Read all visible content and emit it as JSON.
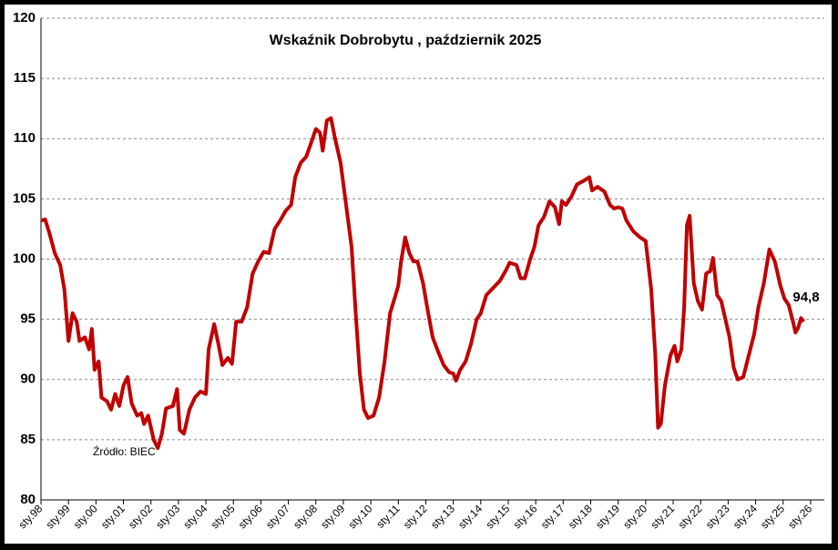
{
  "chart_data": {
    "type": "line",
    "title": "Wskaźnik Dobrobytu , październik 2025",
    "source": "Źródło: BIEC",
    "x": [
      1998.0,
      1998.15,
      1998.3,
      1998.5,
      1998.7,
      1998.85,
      1999.0,
      1999.15,
      1999.3,
      1999.4,
      1999.6,
      1999.75,
      1999.85,
      1999.95,
      2000.1,
      2000.2,
      2000.4,
      2000.55,
      2000.7,
      2000.85,
      2001.0,
      2001.15,
      2001.3,
      2001.5,
      2001.65,
      2001.75,
      2001.9,
      2002.1,
      2002.25,
      2002.4,
      2002.55,
      2002.8,
      2002.95,
      2003.05,
      2003.2,
      2003.4,
      2003.6,
      2003.8,
      2004.0,
      2004.1,
      2004.3,
      2004.45,
      2004.6,
      2004.8,
      2004.95,
      2005.1,
      2005.3,
      2005.5,
      2005.7,
      2005.9,
      2006.1,
      2006.3,
      2006.5,
      2006.7,
      2006.9,
      2007.1,
      2007.25,
      2007.45,
      2007.65,
      2007.85,
      2008.0,
      2008.15,
      2008.25,
      2008.4,
      2008.55,
      2008.7,
      2008.9,
      2009.1,
      2009.3,
      2009.45,
      2009.6,
      2009.75,
      2009.9,
      2010.1,
      2010.3,
      2010.5,
      2010.7,
      2010.9,
      2011.0,
      2011.1,
      2011.25,
      2011.4,
      2011.55,
      2011.7,
      2011.9,
      2012.05,
      2012.25,
      2012.45,
      2012.65,
      2012.85,
      2013.0,
      2013.1,
      2013.25,
      2013.45,
      2013.65,
      2013.85,
      2014.0,
      2014.2,
      2014.45,
      2014.7,
      2014.9,
      2015.05,
      2015.3,
      2015.45,
      2015.6,
      2015.8,
      2015.95,
      2016.1,
      2016.3,
      2016.5,
      2016.7,
      2016.85,
      2016.95,
      2017.1,
      2017.3,
      2017.5,
      2017.75,
      2017.95,
      2018.05,
      2018.25,
      2018.5,
      2018.7,
      2018.85,
      2019.0,
      2019.15,
      2019.3,
      2019.55,
      2019.8,
      2020.0,
      2020.2,
      2020.35,
      2020.45,
      2020.55,
      2020.7,
      2020.9,
      2021.05,
      2021.15,
      2021.3,
      2021.4,
      2021.5,
      2021.6,
      2021.75,
      2021.9,
      2022.05,
      2022.2,
      2022.35,
      2022.45,
      2022.6,
      2022.75,
      2022.9,
      2023.05,
      2023.2,
      2023.35,
      2023.55,
      2023.75,
      2023.95,
      2024.1,
      2024.3,
      2024.5,
      2024.7,
      2024.9,
      2025.05,
      2025.2,
      2025.35,
      2025.45,
      2025.55,
      2025.65,
      2025.75
    ],
    "series": [
      {
        "color": "#c00000",
        "values": [
          103.2,
          103.3,
          102.2,
          100.5,
          99.5,
          97.5,
          93.2,
          95.5,
          94.8,
          93.2,
          93.5,
          92.5,
          94.2,
          90.8,
          91.5,
          88.5,
          88.2,
          87.5,
          88.8,
          87.8,
          89.5,
          90.2,
          88.0,
          87.0,
          87.2,
          86.3,
          87.0,
          85.0,
          84.3,
          85.5,
          87.6,
          87.8,
          89.2,
          85.8,
          85.5,
          87.5,
          88.5,
          89.0,
          88.8,
          92.5,
          94.6,
          93.0,
          91.2,
          91.8,
          91.3,
          94.8,
          94.8,
          96.0,
          98.8,
          99.8,
          100.6,
          100.5,
          102.5,
          103.2,
          104.0,
          104.5,
          106.8,
          108.0,
          108.5,
          109.8,
          110.8,
          110.5,
          109.0,
          111.5,
          111.7,
          110.0,
          108.0,
          104.5,
          101.0,
          95.5,
          90.5,
          87.5,
          86.8,
          87.0,
          88.5,
          91.5,
          95.5,
          97.0,
          97.8,
          99.8,
          101.8,
          100.5,
          99.8,
          99.8,
          98.0,
          96.0,
          93.5,
          92.3,
          91.2,
          90.6,
          90.5,
          89.9,
          90.8,
          91.5,
          93.0,
          95.0,
          95.5,
          97.0,
          97.6,
          98.2,
          99.0,
          99.7,
          99.5,
          98.4,
          98.4,
          100.0,
          101.0,
          102.8,
          103.5,
          104.8,
          104.3,
          102.9,
          104.8,
          104.5,
          105.2,
          106.2,
          106.5,
          106.8,
          105.7,
          106.0,
          105.6,
          104.5,
          104.2,
          104.3,
          104.2,
          103.2,
          102.3,
          101.8,
          101.5,
          97.5,
          92.0,
          86.0,
          86.3,
          89.5,
          92.0,
          92.8,
          91.5,
          92.5,
          96.0,
          102.8,
          103.6,
          98.0,
          96.5,
          95.8,
          98.8,
          99.0,
          100.1,
          97.0,
          96.5,
          95.0,
          93.5,
          91.0,
          90.0,
          90.2,
          92.0,
          93.8,
          96.0,
          98.0,
          100.8,
          99.8,
          97.8,
          96.7,
          96.2,
          94.9,
          93.9,
          94.3,
          95.1,
          94.8
        ]
      }
    ],
    "annotations": [
      {
        "x": 2025.75,
        "y": 94.8,
        "label": "94,8"
      }
    ],
    "xlim": [
      1998,
      2026.5
    ],
    "xticks": [
      {
        "value": 1998,
        "label": "sty.98"
      },
      {
        "value": 1999,
        "label": "sty.99"
      },
      {
        "value": 2000,
        "label": "sty.00"
      },
      {
        "value": 2001,
        "label": "sty.01"
      },
      {
        "value": 2002,
        "label": "sty.02"
      },
      {
        "value": 2003,
        "label": "sty.03"
      },
      {
        "value": 2004,
        "label": "sty.04"
      },
      {
        "value": 2005,
        "label": "sty.05"
      },
      {
        "value": 2006,
        "label": "sty.06"
      },
      {
        "value": 2007,
        "label": "sty.07"
      },
      {
        "value": 2008,
        "label": "sty.08"
      },
      {
        "value": 2009,
        "label": "sty.09"
      },
      {
        "value": 2010,
        "label": "sty.10"
      },
      {
        "value": 2011,
        "label": "sty.11"
      },
      {
        "value": 2012,
        "label": "sty.12"
      },
      {
        "value": 2013,
        "label": "sty.13"
      },
      {
        "value": 2014,
        "label": "sty.14"
      },
      {
        "value": 2015,
        "label": "sty.15"
      },
      {
        "value": 2016,
        "label": "sty.16"
      },
      {
        "value": 2017,
        "label": "sty.17"
      },
      {
        "value": 2018,
        "label": "sty.18"
      },
      {
        "value": 2019,
        "label": "sty.19"
      },
      {
        "value": 2020,
        "label": "sty.20"
      },
      {
        "value": 2021,
        "label": "sty.21"
      },
      {
        "value": 2022,
        "label": "sty.22"
      },
      {
        "value": 2023,
        "label": "sty.23"
      },
      {
        "value": 2024,
        "label": "sty.24"
      },
      {
        "value": 2025,
        "label": "sty.25"
      },
      {
        "value": 2026,
        "label": "sty.26"
      }
    ],
    "ylim": [
      80,
      120
    ],
    "yticks": [
      80,
      85,
      90,
      95,
      100,
      105,
      110,
      115,
      120
    ],
    "grid": true
  }
}
